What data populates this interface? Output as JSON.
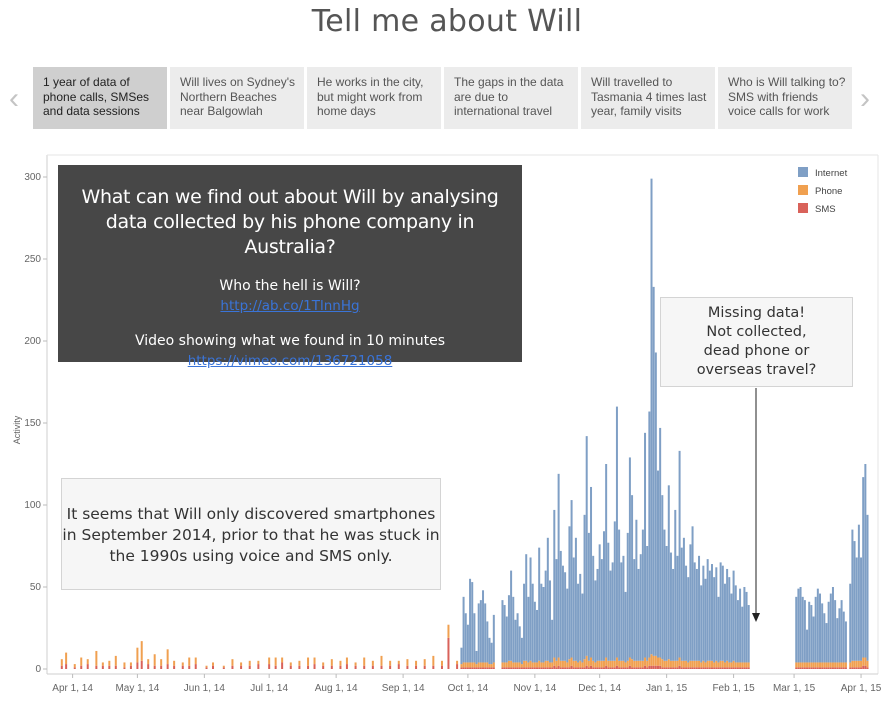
{
  "title": "Tell me about Will",
  "nav": {
    "prev_icon": "‹",
    "next_icon": "›"
  },
  "steps": [
    {
      "label": "1 year of data of phone calls, SMSes and data sessions",
      "active": true
    },
    {
      "label": "Will lives on Sydney's Northern Beaches near Balgowlah",
      "active": false
    },
    {
      "label": "He works in the city, but might work from home days",
      "active": false
    },
    {
      "label": "The gaps in the data are due to international travel",
      "active": false
    },
    {
      "label": "Will travelled to Tasmania 4 times last year, family visits",
      "active": false
    },
    {
      "label": "Who is Will talking to? SMS with friends voice calls for work",
      "active": false
    }
  ],
  "intro_box": {
    "question": "What can we find out about  Will by analysing data collected by his phone company in Australia?",
    "who_label": "Who the hell is Will?",
    "who_link": "http://ab.co/1TlnnHg",
    "video_label": "Video showing what we found in 10 minutes",
    "video_link": "https://vimeo.com/136721058"
  },
  "smartphone_note": "It seems that Will only discovered smartphones in September 2014, prior to that he was stuck in the 1990s using voice and SMS only.",
  "missing_note": "Missing data!\nNot collected,\ndead phone or\noverseas travel?",
  "colors": {
    "internet": "#7f9fc5",
    "phone": "#f0a050",
    "sms": "#d9625a",
    "tick": "#666666"
  },
  "chart_data": {
    "type": "bar",
    "stacked": true,
    "ylabel": "Activity",
    "ylim": [
      0,
      300
    ],
    "yticks": [
      0,
      50,
      100,
      150,
      200,
      250,
      300
    ],
    "xtick_labels": [
      "Apr 1, 14",
      "May 1, 14",
      "Jun 1, 14",
      "Jul 1, 14",
      "Aug 1, 14",
      "Sep 1, 14",
      "Oct 1, 14",
      "Nov 1, 14",
      "Dec 1, 14",
      "Jan 1, 15",
      "Feb 1, 15",
      "Mar 1, 15",
      "Apr 1, 15"
    ],
    "xtick_dates": [
      "2014-04-01",
      "2014-05-01",
      "2014-06-01",
      "2014-07-01",
      "2014-08-01",
      "2014-09-01",
      "2014-10-01",
      "2014-11-01",
      "2014-12-01",
      "2015-01-01",
      "2015-02-01",
      "2015-03-01",
      "2015-04-01"
    ],
    "legend": [
      "Internet",
      "Phone",
      "SMS"
    ],
    "legend_position": "top-right",
    "x_start": "2014-03-22",
    "x_end": "2015-04-07",
    "note": "Daily stacked bars; values estimated from the chart (Internet/Phone/SMS per bar).",
    "bars": [
      [
        "2014-03-27",
        0,
        4,
        2
      ],
      [
        "2014-03-29",
        0,
        7,
        3
      ],
      [
        "2014-04-02",
        0,
        2,
        1
      ],
      [
        "2014-04-05",
        0,
        5,
        2
      ],
      [
        "2014-04-08",
        0,
        3,
        3
      ],
      [
        "2014-04-12",
        0,
        9,
        2
      ],
      [
        "2014-04-15",
        0,
        2,
        2
      ],
      [
        "2014-04-18",
        0,
        3,
        2
      ],
      [
        "2014-04-21",
        0,
        6,
        2
      ],
      [
        "2014-04-25",
        0,
        3,
        1
      ],
      [
        "2014-04-28",
        0,
        2,
        2
      ],
      [
        "2014-05-01",
        0,
        9,
        4
      ],
      [
        "2014-05-03",
        0,
        12,
        5
      ],
      [
        "2014-05-06",
        0,
        3,
        3
      ],
      [
        "2014-05-09",
        0,
        7,
        2
      ],
      [
        "2014-05-12",
        0,
        4,
        2
      ],
      [
        "2014-05-15",
        0,
        9,
        3
      ],
      [
        "2014-05-18",
        0,
        3,
        2
      ],
      [
        "2014-05-22",
        0,
        2,
        2
      ],
      [
        "2014-05-25",
        0,
        5,
        2
      ],
      [
        "2014-05-28",
        0,
        4,
        3
      ],
      [
        "2014-06-02",
        0,
        1,
        1
      ],
      [
        "2014-06-05",
        0,
        2,
        2
      ],
      [
        "2014-06-10",
        0,
        1,
        1
      ],
      [
        "2014-06-14",
        0,
        4,
        2
      ],
      [
        "2014-06-18",
        0,
        2,
        2
      ],
      [
        "2014-06-22",
        0,
        3,
        2
      ],
      [
        "2014-06-26",
        0,
        2,
        3
      ],
      [
        "2014-07-01",
        0,
        4,
        3
      ],
      [
        "2014-07-04",
        0,
        5,
        2
      ],
      [
        "2014-07-07",
        0,
        3,
        4
      ],
      [
        "2014-07-11",
        0,
        2,
        2
      ],
      [
        "2014-07-15",
        0,
        3,
        2
      ],
      [
        "2014-07-19",
        0,
        5,
        2
      ],
      [
        "2014-07-22",
        0,
        4,
        3
      ],
      [
        "2014-07-26",
        0,
        2,
        2
      ],
      [
        "2014-07-30",
        0,
        4,
        2
      ],
      [
        "2014-08-03",
        0,
        3,
        2
      ],
      [
        "2014-08-06",
        0,
        4,
        3
      ],
      [
        "2014-08-10",
        0,
        2,
        2
      ],
      [
        "2014-08-14",
        0,
        5,
        2
      ],
      [
        "2014-08-18",
        0,
        3,
        2
      ],
      [
        "2014-08-22",
        0,
        6,
        2
      ],
      [
        "2014-08-26",
        0,
        3,
        2
      ],
      [
        "2014-08-30",
        0,
        2,
        3
      ],
      [
        "2014-09-03",
        0,
        4,
        2
      ],
      [
        "2014-09-07",
        0,
        3,
        2
      ],
      [
        "2014-09-11",
        0,
        4,
        2
      ],
      [
        "2014-09-15",
        0,
        6,
        2
      ],
      [
        "2014-09-19",
        0,
        3,
        2
      ],
      [
        "2014-09-22",
        0,
        8,
        19
      ],
      [
        "2014-09-26",
        0,
        2,
        3
      ],
      [
        "2014-09-28",
        10,
        2,
        1
      ],
      [
        "2014-09-29",
        40,
        3,
        1
      ],
      [
        "2014-09-30",
        30,
        3,
        1
      ],
      [
        "2014-10-01",
        23,
        3,
        1
      ],
      [
        "2014-10-02",
        51,
        3,
        1
      ],
      [
        "2014-10-03",
        49,
        3,
        1
      ],
      [
        "2014-10-04",
        30,
        3,
        1
      ],
      [
        "2014-10-05",
        8,
        2,
        1
      ],
      [
        "2014-10-06",
        36,
        3,
        1
      ],
      [
        "2014-10-07",
        38,
        3,
        1
      ],
      [
        "2014-10-08",
        44,
        3,
        1
      ],
      [
        "2014-10-09",
        36,
        3,
        1
      ],
      [
        "2014-10-10",
        25,
        3,
        1
      ],
      [
        "2014-10-11",
        16,
        2,
        1
      ],
      [
        "2014-10-12",
        13,
        2,
        1
      ],
      [
        "2014-10-13",
        29,
        3,
        1
      ],
      [
        "2014-10-17",
        38,
        3,
        1
      ],
      [
        "2014-10-18",
        35,
        3,
        1
      ],
      [
        "2014-10-19",
        28,
        3,
        1
      ],
      [
        "2014-10-20",
        40,
        4,
        1
      ],
      [
        "2014-10-21",
        55,
        4,
        1
      ],
      [
        "2014-10-22",
        40,
        3,
        1
      ],
      [
        "2014-10-23",
        26,
        3,
        1
      ],
      [
        "2014-10-24",
        30,
        3,
        1
      ],
      [
        "2014-10-25",
        22,
        3,
        1
      ],
      [
        "2014-10-26",
        16,
        2,
        1
      ],
      [
        "2014-10-27",
        47,
        4,
        1
      ],
      [
        "2014-10-28",
        65,
        4,
        1
      ],
      [
        "2014-10-29",
        40,
        3,
        1
      ],
      [
        "2014-10-30",
        63,
        4,
        1
      ],
      [
        "2014-10-31",
        48,
        3,
        1
      ],
      [
        "2014-11-01",
        37,
        3,
        1
      ],
      [
        "2014-11-02",
        32,
        3,
        1
      ],
      [
        "2014-11-03",
        69,
        4,
        1
      ],
      [
        "2014-11-04",
        48,
        3,
        1
      ],
      [
        "2014-11-05",
        46,
        3,
        1
      ],
      [
        "2014-11-06",
        55,
        4,
        1
      ],
      [
        "2014-11-07",
        75,
        4,
        1
      ],
      [
        "2014-11-08",
        50,
        3,
        1
      ],
      [
        "2014-11-09",
        26,
        3,
        1
      ],
      [
        "2014-11-10",
        90,
        5,
        2
      ],
      [
        "2014-11-11",
        62,
        4,
        1
      ],
      [
        "2014-11-12",
        112,
        5,
        2
      ],
      [
        "2014-11-13",
        67,
        4,
        1
      ],
      [
        "2014-11-14",
        58,
        4,
        1
      ],
      [
        "2014-11-15",
        54,
        4,
        1
      ],
      [
        "2014-11-16",
        45,
        3,
        1
      ],
      [
        "2014-11-17",
        81,
        5,
        1
      ],
      [
        "2014-11-18",
        96,
        5,
        2
      ],
      [
        "2014-11-19",
        63,
        4,
        1
      ],
      [
        "2014-11-20",
        75,
        4,
        1
      ],
      [
        "2014-11-21",
        48,
        3,
        1
      ],
      [
        "2014-11-22",
        53,
        4,
        1
      ],
      [
        "2014-11-23",
        42,
        3,
        1
      ],
      [
        "2014-11-24",
        88,
        5,
        1
      ],
      [
        "2014-11-25",
        134,
        6,
        2
      ],
      [
        "2014-11-26",
        78,
        4,
        1
      ],
      [
        "2014-11-27",
        104,
        5,
        2
      ],
      [
        "2014-11-28",
        64,
        4,
        1
      ],
      [
        "2014-11-29",
        50,
        3,
        1
      ],
      [
        "2014-11-30",
        56,
        4,
        1
      ],
      [
        "2014-12-01",
        71,
        4,
        1
      ],
      [
        "2014-12-02",
        62,
        4,
        1
      ],
      [
        "2014-12-03",
        79,
        4,
        1
      ],
      [
        "2014-12-04",
        118,
        5,
        2
      ],
      [
        "2014-12-05",
        72,
        4,
        1
      ],
      [
        "2014-12-06",
        55,
        4,
        1
      ],
      [
        "2014-12-07",
        60,
        4,
        1
      ],
      [
        "2014-12-08",
        85,
        4,
        1
      ],
      [
        "2014-12-09",
        153,
        5,
        2
      ],
      [
        "2014-12-10",
        80,
        4,
        1
      ],
      [
        "2014-12-11",
        60,
        4,
        1
      ],
      [
        "2014-12-12",
        64,
        4,
        1
      ],
      [
        "2014-12-13",
        43,
        3,
        1
      ],
      [
        "2014-12-14",
        78,
        4,
        1
      ],
      [
        "2014-12-15",
        122,
        5,
        2
      ],
      [
        "2014-12-16",
        100,
        5,
        1
      ],
      [
        "2014-12-17",
        62,
        4,
        1
      ],
      [
        "2014-12-18",
        86,
        4,
        1
      ],
      [
        "2014-12-19",
        56,
        4,
        1
      ],
      [
        "2014-12-20",
        65,
        4,
        1
      ],
      [
        "2014-12-21",
        80,
        4,
        1
      ],
      [
        "2014-12-22",
        137,
        5,
        2
      ],
      [
        "2014-12-23",
        70,
        4,
        1
      ],
      [
        "2014-12-24",
        150,
        5,
        2
      ],
      [
        "2014-12-25",
        290,
        7,
        2
      ],
      [
        "2014-12-26",
        225,
        6,
        2
      ],
      [
        "2014-12-27",
        185,
        6,
        2
      ],
      [
        "2014-12-28",
        114,
        5,
        2
      ],
      [
        "2014-12-29",
        140,
        5,
        2
      ],
      [
        "2014-12-30",
        100,
        5,
        1
      ],
      [
        "2014-12-31",
        80,
        4,
        1
      ],
      [
        "2015-01-01",
        70,
        4,
        1
      ],
      [
        "2015-01-02",
        106,
        5,
        1
      ],
      [
        "2015-01-03",
        66,
        4,
        1
      ],
      [
        "2015-01-04",
        56,
        4,
        1
      ],
      [
        "2015-01-05",
        92,
        4,
        1
      ],
      [
        "2015-01-06",
        64,
        4,
        1
      ],
      [
        "2015-01-07",
        126,
        5,
        2
      ],
      [
        "2015-01-08",
        69,
        4,
        1
      ],
      [
        "2015-01-09",
        75,
        4,
        1
      ],
      [
        "2015-01-10",
        58,
        4,
        1
      ],
      [
        "2015-01-11",
        52,
        3,
        1
      ],
      [
        "2015-01-12",
        71,
        4,
        1
      ],
      [
        "2015-01-13",
        82,
        4,
        1
      ],
      [
        "2015-01-14",
        60,
        4,
        1
      ],
      [
        "2015-01-15",
        56,
        4,
        1
      ],
      [
        "2015-01-16",
        64,
        4,
        1
      ],
      [
        "2015-01-17",
        47,
        3,
        1
      ],
      [
        "2015-01-18",
        58,
        4,
        1
      ],
      [
        "2015-01-19",
        51,
        3,
        1
      ],
      [
        "2015-01-20",
        62,
        4,
        1
      ],
      [
        "2015-01-21",
        55,
        4,
        1
      ],
      [
        "2015-01-22",
        59,
        4,
        1
      ],
      [
        "2015-01-23",
        52,
        3,
        1
      ],
      [
        "2015-01-24",
        57,
        4,
        1
      ],
      [
        "2015-01-25",
        40,
        3,
        1
      ],
      [
        "2015-01-26",
        60,
        4,
        1
      ],
      [
        "2015-01-27",
        58,
        4,
        1
      ],
      [
        "2015-01-28",
        48,
        3,
        1
      ],
      [
        "2015-01-29",
        56,
        4,
        1
      ],
      [
        "2015-01-30",
        52,
        3,
        1
      ],
      [
        "2015-01-31",
        42,
        3,
        1
      ],
      [
        "2015-02-01",
        55,
        4,
        1
      ],
      [
        "2015-02-02",
        47,
        3,
        1
      ],
      [
        "2015-02-03",
        38,
        3,
        1
      ],
      [
        "2015-02-04",
        45,
        3,
        1
      ],
      [
        "2015-02-05",
        34,
        3,
        1
      ],
      [
        "2015-02-06",
        46,
        3,
        1
      ],
      [
        "2015-02-07",
        43,
        3,
        1
      ],
      [
        "2015-02-08",
        35,
        3,
        1
      ],
      [
        "2015-03-02",
        40,
        3,
        1
      ],
      [
        "2015-03-03",
        45,
        3,
        1
      ],
      [
        "2015-03-04",
        46,
        3,
        1
      ],
      [
        "2015-03-05",
        40,
        3,
        1
      ],
      [
        "2015-03-06",
        38,
        3,
        1
      ],
      [
        "2015-03-07",
        20,
        3,
        1
      ],
      [
        "2015-03-08",
        37,
        3,
        1
      ],
      [
        "2015-03-09",
        35,
        3,
        1
      ],
      [
        "2015-03-10",
        28,
        3,
        1
      ],
      [
        "2015-03-11",
        40,
        3,
        1
      ],
      [
        "2015-03-12",
        45,
        3,
        1
      ],
      [
        "2015-03-13",
        42,
        3,
        1
      ],
      [
        "2015-03-14",
        36,
        3,
        1
      ],
      [
        "2015-03-15",
        30,
        3,
        1
      ],
      [
        "2015-03-16",
        24,
        3,
        1
      ],
      [
        "2015-03-17",
        37,
        3,
        1
      ],
      [
        "2015-03-18",
        42,
        3,
        1
      ],
      [
        "2015-03-19",
        46,
        3,
        1
      ],
      [
        "2015-03-20",
        38,
        3,
        1
      ],
      [
        "2015-03-21",
        27,
        3,
        1
      ],
      [
        "2015-03-22",
        33,
        3,
        1
      ],
      [
        "2015-03-23",
        38,
        3,
        1
      ],
      [
        "2015-03-24",
        31,
        3,
        1
      ],
      [
        "2015-03-25",
        25,
        3,
        1
      ],
      [
        "2015-03-27",
        48,
        3,
        1
      ],
      [
        "2015-03-28",
        80,
        4,
        1
      ],
      [
        "2015-03-29",
        73,
        4,
        1
      ],
      [
        "2015-03-30",
        63,
        4,
        1
      ],
      [
        "2015-03-31",
        83,
        4,
        1
      ],
      [
        "2015-04-01",
        63,
        4,
        1
      ],
      [
        "2015-04-02",
        110,
        5,
        2
      ],
      [
        "2015-04-03",
        118,
        5,
        2
      ],
      [
        "2015-04-04",
        89,
        4,
        1
      ]
    ]
  }
}
